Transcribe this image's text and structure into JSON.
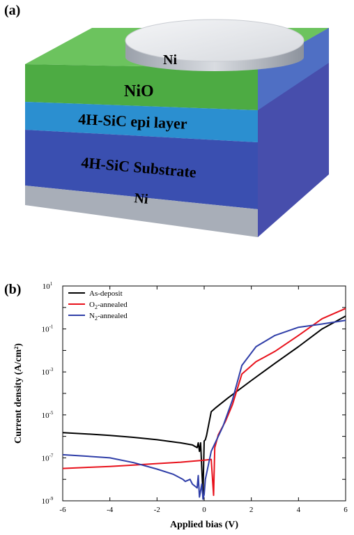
{
  "panel_a": {
    "label": "(a)",
    "layers": {
      "top_contact": "Ni",
      "oxide": "NiO",
      "epi": "4H-SiC epi layer",
      "substrate": "4H-SiC  Substrate",
      "bottom_contact": "Ni"
    },
    "colors": {
      "ni": "#c7cbd3",
      "nio": "#4dab43",
      "epi": "#2b8fd0",
      "substrate": "#3a4fb0",
      "bottom_ni": "#a8aeb8"
    }
  },
  "panel_b": {
    "label": "(b)",
    "chart_data": {
      "type": "line",
      "xlabel": "Applied bias (V)",
      "ylabel": "Current density (A/cm²)",
      "xlim": [
        -6,
        6
      ],
      "ylim": [
        1e-09,
        10
      ],
      "yscale": "log",
      "x_ticks": [
        "-6",
        "-4",
        "-2",
        "0",
        "2",
        "4",
        "6"
      ],
      "y_ticks": [
        {
          "base": "10",
          "exp": "1",
          "value": 10
        },
        {
          "base": "10",
          "exp": "-1",
          "value": 0.1
        },
        {
          "base": "10",
          "exp": "-3",
          "value": 0.001
        },
        {
          "base": "10",
          "exp": "-5",
          "value": 1e-05
        },
        {
          "base": "10",
          "exp": "-7",
          "value": 1e-07
        },
        {
          "base": "10",
          "exp": "-9",
          "value": 1e-09
        }
      ],
      "legend_position": "top-left",
      "series": [
        {
          "name_parts": {
            "pre": "As-deposit",
            "sub": "",
            "post": ""
          },
          "color": "#000000",
          "points": [
            [
              -6,
              1.5e-06
            ],
            [
              -5,
              1.3e-06
            ],
            [
              -4,
              1.1e-06
            ],
            [
              -3,
              9e-07
            ],
            [
              -2,
              7e-07
            ],
            [
              -1,
              5e-07
            ],
            [
              -0.5,
              4e-07
            ],
            [
              -0.3,
              3e-07
            ],
            [
              -0.25,
              5e-07
            ],
            [
              -0.2,
              2e-07
            ],
            [
              -0.15,
              5e-07
            ],
            [
              -0.1,
              3e-08
            ],
            [
              -0.05,
              2e-09
            ],
            [
              0,
              6e-07
            ],
            [
              0.05,
              7e-07
            ],
            [
              0.1,
              1.1e-06
            ],
            [
              0.3,
              1.4e-05
            ],
            [
              0.5,
              2.2e-05
            ],
            [
              1,
              6e-05
            ],
            [
              2,
              0.0004
            ],
            [
              3,
              0.0025
            ],
            [
              4,
              0.015
            ],
            [
              5,
              0.1
            ],
            [
              6,
              0.4
            ]
          ]
        },
        {
          "name_parts": {
            "pre": "O",
            "sub": "2",
            "post": "-annealed"
          },
          "color": "#e8111b",
          "points": [
            [
              -6,
              3.2e-08
            ],
            [
              -5,
              3.6e-08
            ],
            [
              -4,
              4e-08
            ],
            [
              -3,
              4.6e-08
            ],
            [
              -2,
              5.4e-08
            ],
            [
              -1,
              6.3e-08
            ],
            [
              0,
              7.8e-08
            ],
            [
              0.3,
              8.5e-08
            ],
            [
              0.4,
              1.8e-09
            ],
            [
              0.45,
              3e-07
            ],
            [
              0.6,
              1.2e-06
            ],
            [
              0.9,
              5e-06
            ],
            [
              1.2,
              3e-05
            ],
            [
              1.6,
              0.0008
            ],
            [
              2.2,
              0.003
            ],
            [
              3,
              0.009
            ],
            [
              4,
              0.05
            ],
            [
              5,
              0.3
            ],
            [
              6,
              0.9
            ]
          ]
        },
        {
          "name_parts": {
            "pre": "N",
            "sub": "2",
            "post": "-annealed"
          },
          "color": "#2f3ea8",
          "points": [
            [
              -6,
              1.4e-07
            ],
            [
              -5,
              1.2e-07
            ],
            [
              -4,
              1e-07
            ],
            [
              -3,
              6e-08
            ],
            [
              -2,
              3e-08
            ],
            [
              -1.3,
              1.7e-08
            ],
            [
              -0.9,
              1e-08
            ],
            [
              -0.8,
              8e-09
            ],
            [
              -0.6,
              1e-08
            ],
            [
              -0.5,
              6e-09
            ],
            [
              -0.3,
              4e-09
            ],
            [
              -0.25,
              1.5e-08
            ],
            [
              -0.2,
              1.5e-09
            ],
            [
              -0.1,
              6e-09
            ],
            [
              -0.05,
              1.2e-09
            ],
            [
              0,
              2e-09
            ],
            [
              0.05,
              1e-08
            ],
            [
              0.3,
              2e-07
            ],
            [
              0.8,
              3e-06
            ],
            [
              1.2,
              5e-05
            ],
            [
              1.6,
              0.002
            ],
            [
              2.2,
              0.015
            ],
            [
              3,
              0.05
            ],
            [
              4,
              0.12
            ],
            [
              5,
              0.17
            ],
            [
              6,
              0.25
            ]
          ]
        }
      ]
    }
  }
}
